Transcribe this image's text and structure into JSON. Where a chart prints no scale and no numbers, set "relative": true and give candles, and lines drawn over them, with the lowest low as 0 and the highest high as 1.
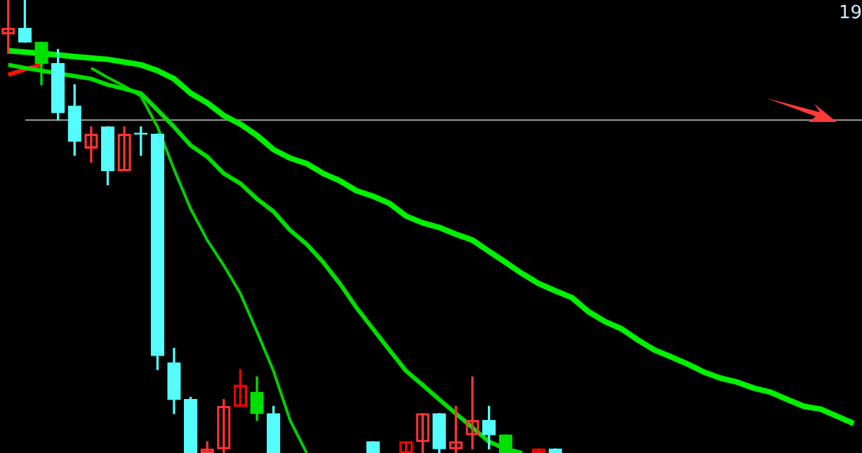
{
  "chart_data": {
    "type": "candlestick",
    "relative": true,
    "categories": [
      null,
      null,
      null,
      null,
      null,
      null,
      null,
      null,
      null,
      null,
      null,
      null,
      null,
      null,
      null,
      null,
      null,
      null,
      null,
      null,
      null,
      null,
      null,
      null,
      null,
      null,
      null,
      null,
      null,
      null,
      null,
      null,
      null,
      null,
      null,
      null,
      null,
      null,
      null,
      null,
      null,
      null,
      null,
      null,
      null,
      null,
      null,
      null,
      null,
      null,
      null,
      null
    ],
    "ohlc": [
      [
        0.925,
        1.0,
        0.882,
        0.938
      ],
      [
        0.938,
        1.0,
        0.907,
        0.907
      ],
      [
        0.907,
        0.907,
        0.813,
        0.86
      ],
      [
        0.86,
        0.891,
        0.735,
        0.751
      ],
      [
        0.766,
        0.813,
        0.657,
        0.688
      ],
      [
        0.673,
        0.72,
        0.642,
        0.704
      ],
      [
        0.72,
        0.72,
        0.592,
        0.623
      ],
      [
        0.623,
        0.72,
        0.623,
        0.704
      ],
      [
        0.704,
        0.72,
        0.657,
        0.704
      ],
      [
        0.704,
        0.704,
        0.184,
        0.215
      ],
      [
        0.199,
        0.231,
        0.087,
        0.118
      ],
      [
        0.118,
        0.123,
        0,
        0
      ],
      [
        0,
        0.025,
        0,
        0.009
      ],
      [
        0.009,
        0.118,
        0,
        0.103
      ],
      [
        0.103,
        0.184,
        0.103,
        0.15
      ],
      [
        0.134,
        0.168,
        0.072,
        0.087
      ],
      [
        0.087,
        0.103,
        0,
        0
      ],
      null,
      null,
      null,
      null,
      null,
      [
        0.025,
        0.025,
        0,
        0
      ],
      null,
      [
        0,
        0.025,
        0,
        0.025
      ],
      [
        0.025,
        0.087,
        0,
        0.087
      ],
      [
        0.087,
        0.087,
        0,
        0.009
      ],
      [
        0.009,
        0.103,
        0,
        0.025
      ],
      [
        0.04,
        0.168,
        0.009,
        0.072
      ],
      [
        0.072,
        0.103,
        0.009,
        0.04
      ],
      [
        0.04,
        0.04,
        0,
        0
      ],
      null,
      [
        0,
        0.009,
        0,
        0.009
      ],
      [
        0.009,
        0.009,
        0,
        0
      ],
      null,
      null,
      null,
      null,
      null,
      null,
      null,
      null,
      null,
      null,
      null,
      null,
      null,
      null,
      null,
      null,
      null,
      null
    ],
    "colors": [
      "#ff3232",
      "#54fcfc",
      "#00e000",
      "#54fcfc",
      "#54fcfc",
      "#ff3232",
      "#54fcfc",
      "#ff3232",
      "#54fcfc",
      "#54fcfc",
      "#54fcfc",
      "#54fcfc",
      "#ff3232",
      "#ff3232",
      "#ff0000",
      "#00e000",
      "#54fcfc",
      null,
      null,
      null,
      null,
      null,
      "#54fcfc",
      null,
      "#ff0000",
      "#ff3232",
      "#54fcfc",
      "#ff3232",
      "#ff3232",
      "#54fcfc",
      "#00e000",
      null,
      "#ff0000",
      "#54fcfc",
      null,
      null,
      null,
      null,
      null,
      null,
      null,
      null,
      null,
      null,
      null,
      null,
      null,
      null,
      null,
      null,
      null,
      null
    ],
    "series": [
      {
        "type": "line",
        "color": "#00f000",
        "values": [
          0.888,
          0.885,
          0.882,
          0.879,
          0.875,
          0.872,
          0.869,
          0.863,
          0.857,
          0.844,
          0.826,
          0.794,
          0.773,
          0.745,
          0.726,
          0.701,
          0.67,
          0.651,
          0.639,
          0.617,
          0.601,
          0.579,
          0.567,
          0.551,
          0.523,
          0.508,
          0.498,
          0.483,
          0.47,
          0.445,
          0.421,
          0.396,
          0.374,
          0.358,
          0.343,
          0.312,
          0.29,
          0.274,
          0.249,
          0.227,
          0.212,
          0.196,
          0.178,
          0.165,
          0.156,
          0.143,
          0.134,
          0.118,
          0.103,
          0.097,
          0.081,
          0.065
        ]
      },
      {
        "type": "line",
        "color": "#00e000",
        "values": [
          0.857,
          0.85,
          0.844,
          null,
          0.832,
          0.826,
          0.813,
          0.804,
          0.794,
          0.757,
          0.72,
          0.679,
          0.654,
          0.617,
          0.595,
          0.561,
          0.533,
          0.492,
          0.461,
          0.421,
          0.374,
          0.321,
          0.274,
          0.227,
          0.181,
          0.15,
          0.118,
          0.087,
          0.056,
          0.025,
          0.009,
          0,
          null,
          null,
          null,
          null,
          null,
          null,
          null,
          null,
          null,
          null,
          null,
          null,
          null,
          null,
          null,
          null,
          null,
          null,
          null,
          null
        ]
      },
      {
        "type": "line",
        "color": "#00d000",
        "values": [
          null,
          null,
          null,
          null,
          null,
          0.85,
          0.829,
          0.81,
          0.788,
          0.72,
          0.626,
          0.539,
          0.47,
          0.414,
          0.352,
          0.268,
          0.181,
          0.072,
          0,
          null,
          null,
          null,
          null,
          null,
          null,
          null,
          null,
          null,
          null,
          null,
          null,
          null,
          null,
          null,
          null,
          null,
          null,
          null,
          null,
          null,
          null,
          null,
          null,
          null,
          null,
          null,
          null,
          null,
          null,
          null,
          null,
          null
        ]
      },
      {
        "type": "line",
        "color": "#ff1010",
        "values": [
          0.835,
          0.847,
          0.857,
          null,
          null,
          null,
          null,
          null,
          null,
          null,
          null,
          null,
          null,
          null,
          null,
          null,
          null,
          null,
          null,
          null,
          null,
          null,
          null,
          null,
          null,
          null,
          null,
          null,
          null,
          null,
          null,
          null,
          null,
          null,
          null,
          null,
          null,
          null,
          null,
          null,
          null,
          null,
          null,
          null,
          null,
          null,
          null,
          null,
          null,
          null,
          null,
          null
        ]
      }
    ],
    "ref_lines": [
      {
        "axis": "y",
        "value": 0.735,
        "color": "#a0a0a0"
      }
    ],
    "annotations": [
      "19"
    ]
  }
}
